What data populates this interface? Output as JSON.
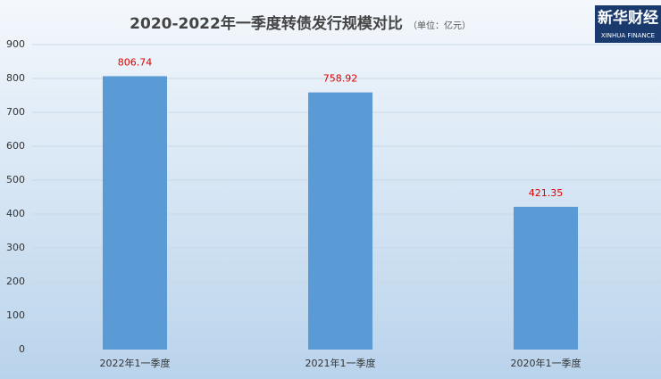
{
  "chart_data": {
    "type": "bar",
    "title": "2020-2022年一季度转债发行规模对比",
    "subtitle": "（单位：亿元）",
    "logo": {
      "name": "新华财经",
      "sub": "XINHUA FINANCE"
    },
    "categories": [
      "2022年1一季度",
      "2021年1一季度",
      "2020年1一季度"
    ],
    "values": [
      806.74,
      758.92,
      421.35
    ],
    "color": "#5b9bd5",
    "label_color": "#e00000",
    "ylim": [
      0,
      900
    ],
    "yticks": [
      0,
      100,
      200,
      300,
      400,
      500,
      600,
      700,
      800,
      900
    ],
    "grid": true
  }
}
